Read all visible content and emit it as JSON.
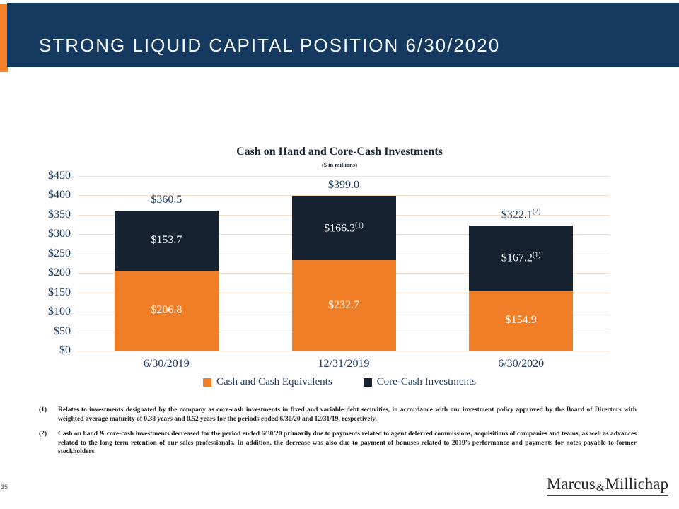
{
  "slide": {
    "title": "STRONG LIQUID CAPITAL POSITION 6/30/2020",
    "page_number": "35"
  },
  "chart_data": {
    "type": "bar",
    "stacked": true,
    "title": "Cash on Hand and Core-Cash Investments",
    "subtitle": "($ in millions)",
    "categories": [
      "6/30/2019",
      "12/31/2019",
      "6/30/2020"
    ],
    "series": [
      {
        "name": "Cash and Cash Equivalents",
        "color": "#F07E26",
        "values": [
          206.8,
          232.7,
          154.9
        ],
        "labels": [
          {
            "text": "$206.8"
          },
          {
            "text": "$232.7"
          },
          {
            "text": "$154.9"
          }
        ]
      },
      {
        "name": "Core-Cash Investments",
        "color": "#162230",
        "values": [
          153.7,
          166.3,
          167.2
        ],
        "labels": [
          {
            "text": "$153.7"
          },
          {
            "text": "$166.3",
            "sup": "(1)"
          },
          {
            "text": "$167.2",
            "sup": "(1)"
          }
        ]
      }
    ],
    "totals": [
      360.5,
      399.0,
      322.1
    ],
    "total_labels": [
      {
        "text": "$360.5"
      },
      {
        "text": "$399.0"
      },
      {
        "text": "$322.1",
        "sup": "(2)"
      }
    ],
    "ylim": [
      0,
      450
    ],
    "ytick_step": 50,
    "yticks": [
      "$450",
      "$400",
      "$350",
      "$300",
      "$250",
      "$200",
      "$150",
      "$100",
      "$50",
      "$0"
    ],
    "grid": true,
    "gridline_color": "#F8DCC5",
    "legend_position": "bottom"
  },
  "footnotes": [
    {
      "marker": "(1)",
      "text": "Relates to investments designated by the company as core-cash investments in fixed and variable debt securities, in accordance with our investment policy approved by the Board of Directors with weighted average maturity of 0.38 years and 0.52 years for the periods ended 6/30/20 and 12/31/19, respectively."
    },
    {
      "marker": "(2)",
      "text": "Cash on hand & core-cash investments decreased for the period ended 6/30/20 primarily due to payments related to agent deferred commissions, acquisitions of companies and teams, as well as advances related to the long-term retention of our sales professionals.  In addition, the decrease was also due to payment of bonuses related to 2019’s performance and payments for notes payable to former stockholders."
    }
  ],
  "footer": {
    "logo": {
      "part1": "Marcus",
      "amp": "&",
      "part2": "Millichap"
    }
  },
  "colors": {
    "header_navy": "#15395F",
    "accent_orange": "#F4802A",
    "bar_orange": "#F07E26",
    "bar_navy": "#162230",
    "text_navy": "#17375E",
    "gridline_peach": "#F8DCC5"
  }
}
